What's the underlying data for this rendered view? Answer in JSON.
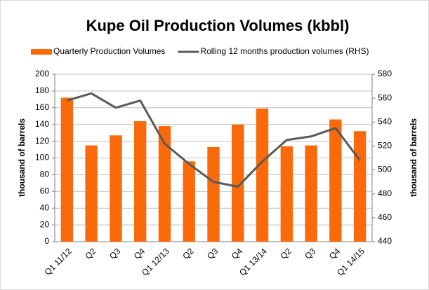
{
  "chart_data": {
    "type": "bar",
    "title": "Kupe Oil Production Volumes (kbbl)",
    "categories": [
      "Q1 11/12",
      "Q2",
      "Q3",
      "Q4",
      "Q1 12/13",
      "Q2",
      "Q3",
      "Q4",
      "Q1 13/14",
      "Q2",
      "Q3",
      "Q4",
      "Q1 14/15"
    ],
    "series": [
      {
        "name": "Quarterly Production Volumes",
        "type": "bar",
        "color": "#fa6a0a",
        "values": [
          172,
          115,
          127,
          144,
          138,
          96,
          113,
          140,
          159,
          114,
          115,
          146,
          132
        ]
      },
      {
        "name": "Rolling 12 months production volumes (RHS)",
        "type": "line",
        "axis": "y2",
        "color": "#595959",
        "values": [
          558,
          564,
          552,
          558,
          522,
          505,
          490,
          486,
          507,
          525,
          528,
          535,
          508
        ]
      }
    ],
    "ylabel": "thousand of barrels",
    "y2label": "thousand of barrels",
    "ylim": [
      0,
      200
    ],
    "yticks": [
      0,
      20,
      40,
      60,
      80,
      100,
      120,
      140,
      160,
      180,
      200
    ],
    "y2lim": [
      440,
      580
    ],
    "y2ticks": [
      440,
      460,
      480,
      500,
      520,
      540,
      560,
      580
    ],
    "grid": true,
    "legend": "top"
  }
}
